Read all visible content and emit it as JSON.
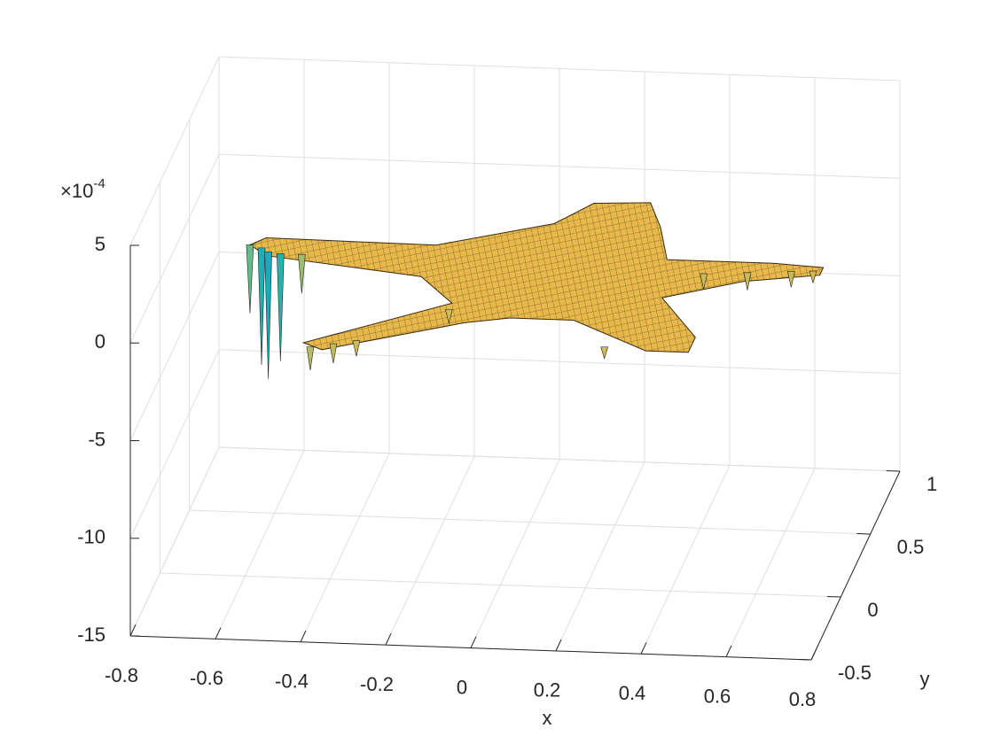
{
  "chart_data": {
    "type": "surface3d",
    "xlabel": "x",
    "ylabel": "y",
    "z_multiplier": {
      "base": "×10",
      "exponent": "-4"
    },
    "xlim": [
      -0.8,
      0.8
    ],
    "ylim": [
      -0.5,
      1
    ],
    "zlim": [
      -15,
      5
    ],
    "xticks": [
      -0.8,
      -0.6,
      -0.4,
      -0.2,
      0,
      0.2,
      0.4,
      0.6,
      0.8
    ],
    "yticks": [
      -0.5,
      0,
      0.5,
      1
    ],
    "zticks": [
      -15,
      -10,
      -5,
      0,
      5
    ],
    "grid": true,
    "colormap": [
      "#352a87",
      "#0f5cdd",
      "#1481d6",
      "#06a4ca",
      "#2eb7a4",
      "#87bf77",
      "#e8b94a",
      "#f6bd35",
      "#f9fb0e"
    ],
    "surface": {
      "x": [
        0.05,
        0.12,
        0.25,
        0.3,
        0.35,
        0.6,
        0.72,
        0.72,
        0.55,
        0.38,
        0.5,
        0.5,
        0.4,
        0.2,
        0.05,
        -0.05,
        -0.35,
        -0.4,
        -0.1,
        -0.2,
        -0.58,
        -0.63,
        -0.6,
        -0.2
      ],
      "y": [
        0.55,
        0.72,
        0.74,
        0.55,
        0.3,
        0.3,
        0.28,
        0.22,
        0.15,
        0.0,
        -0.3,
        -0.42,
        -0.42,
        -0.2,
        -0.2,
        -0.25,
        -0.5,
        -0.45,
        -0.1,
        0.1,
        0.22,
        0.3,
        0.36,
        0.35
      ],
      "z": [
        0,
        0,
        0,
        0,
        0,
        0,
        0,
        0,
        0,
        0,
        0,
        0,
        0,
        0,
        0,
        0,
        0,
        0,
        0,
        0,
        0,
        0,
        0,
        0
      ]
    },
    "spikes": {
      "x": [
        -0.63,
        -0.6,
        -0.58,
        -0.55,
        -0.5,
        -0.38,
        -0.33,
        -0.28,
        -0.1,
        0.3,
        0.45,
        0.55,
        0.65,
        0.7
      ],
      "y": [
        0.3,
        0.28,
        0.25,
        0.24,
        0.24,
        -0.48,
        -0.45,
        -0.42,
        -0.15,
        -0.4,
        0.2,
        0.22,
        0.24,
        0.25
      ],
      "z": [
        -3.5,
        -6,
        -6.5,
        -5.5,
        -2,
        -1.2,
        -1,
        -0.8,
        -0.7,
        -0.6,
        -0.8,
        -0.9,
        -0.8,
        -0.6
      ]
    }
  }
}
